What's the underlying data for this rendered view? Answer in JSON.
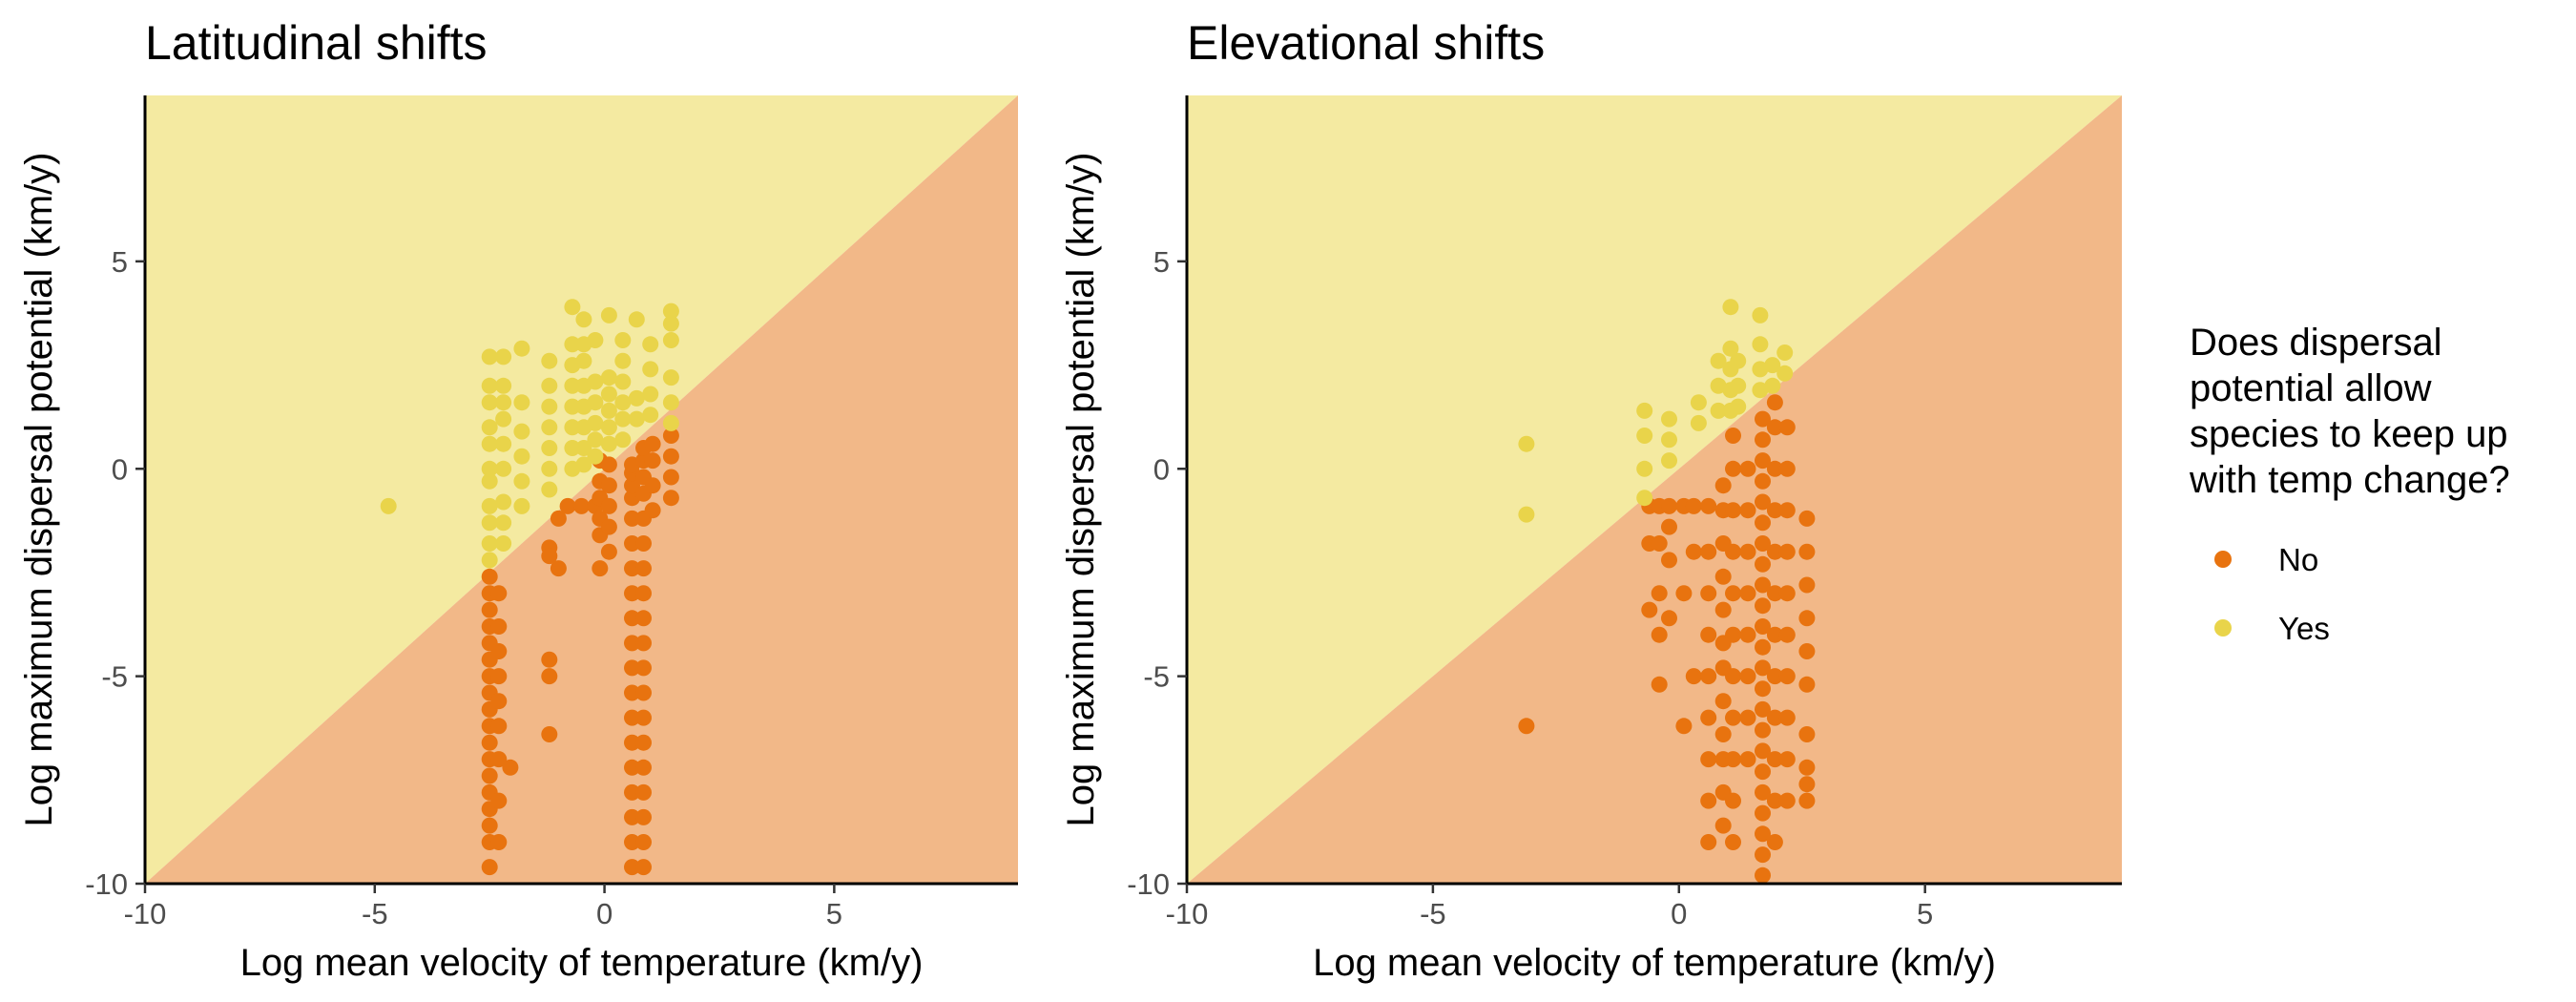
{
  "colors": {
    "no": "#E8730F",
    "yes": "#E9D44A",
    "bg_yes": "#F4EAA1",
    "bg_no": "#F2B888"
  },
  "legend": {
    "title_lines": [
      "Does dispersal",
      "potential allow",
      "species to keep up",
      "with temp change?"
    ],
    "items": [
      {
        "label": "No",
        "key": "no"
      },
      {
        "label": "Yes",
        "key": "yes"
      }
    ]
  },
  "chart_data": [
    {
      "type": "scatter",
      "title": "Latitudinal shifts",
      "xlabel": "Log mean velocity of temperature (km/y)",
      "ylabel": "Log maximum dispersal potential (km/y)",
      "xlim": [
        -10,
        9
      ],
      "ylim": [
        -10,
        9
      ],
      "xticks": [
        -10,
        -5,
        0,
        5
      ],
      "yticks": [
        -10,
        -5,
        0,
        5
      ],
      "tick_labels": [
        "-10",
        "-5",
        "0",
        "5"
      ],
      "background": "diagonal y = x split: above Yes, below No",
      "series": [
        {
          "name": "No",
          "key": "no",
          "columns": [
            {
              "x": -2.5,
              "y": [
                -9.6,
                -9.0,
                -8.6,
                -8.2,
                -7.8,
                -7.4,
                -7.0,
                -6.6,
                -6.2,
                -5.8,
                -5.4,
                -5.0,
                -4.6,
                -4.2,
                -3.8,
                -3.4,
                -3.0,
                -2.6
              ]
            },
            {
              "x": -2.3,
              "y": [
                -9.0,
                -8.0,
                -7.0,
                -6.2,
                -5.6,
                -5.0,
                -4.4,
                -3.8,
                -3.0
              ]
            },
            {
              "x": -2.05,
              "y": [
                -7.2
              ]
            },
            {
              "x": -1.2,
              "y": [
                -6.4,
                -5.0,
                -4.6,
                -1.9,
                -2.1
              ]
            },
            {
              "x": -1.0,
              "y": [
                -2.4,
                -1.2
              ]
            },
            {
              "x": -0.8,
              "y": [
                -0.9
              ]
            },
            {
              "x": -0.5,
              "y": [
                -0.9
              ]
            },
            {
              "x": -0.2,
              "y": [
                -0.9
              ]
            },
            {
              "x": -0.1,
              "y": [
                -2.4,
                -1.6,
                -1.2,
                -0.7,
                -0.3,
                0.2
              ]
            },
            {
              "x": 0.1,
              "y": [
                -2.0,
                -1.4,
                -0.9,
                -0.4,
                0.1
              ]
            },
            {
              "x": 0.6,
              "y": [
                -9.6,
                -9.0,
                -8.4,
                -7.8,
                -7.2,
                -6.6,
                -6.0,
                -5.4,
                -4.8,
                -4.2,
                -3.6,
                -3.0,
                -2.4,
                -1.8,
                -1.2,
                -0.7,
                -0.4,
                -0.1,
                0.1
              ]
            },
            {
              "x": 0.85,
              "y": [
                -9.6,
                -9.0,
                -8.4,
                -7.8,
                -7.2,
                -6.6,
                -6.0,
                -5.4,
                -4.8,
                -4.2,
                -3.6,
                -3.0,
                -2.4,
                -1.8,
                -1.2,
                -0.6,
                -0.2,
                0.2,
                0.5
              ]
            },
            {
              "x": 1.05,
              "y": [
                -1.0,
                -0.4,
                0.2,
                0.6
              ]
            },
            {
              "x": 1.45,
              "y": [
                -0.7,
                -0.2,
                0.3,
                0.8
              ]
            }
          ]
        },
        {
          "name": "Yes",
          "key": "yes",
          "columns": [
            {
              "x": -4.7,
              "y": [
                -0.9
              ]
            },
            {
              "x": -2.5,
              "y": [
                -2.2,
                -1.8,
                -1.3,
                -0.9,
                -0.3,
                0.0,
                0.6,
                1.0,
                1.6,
                2.0,
                2.7
              ]
            },
            {
              "x": -2.2,
              "y": [
                -1.8,
                -1.3,
                -0.8,
                0.0,
                0.6,
                1.2,
                1.6,
                2.0,
                2.7
              ]
            },
            {
              "x": -1.8,
              "y": [
                -0.9,
                -0.3,
                0.3,
                0.9,
                1.6,
                2.9
              ]
            },
            {
              "x": -1.2,
              "y": [
                -0.5,
                0.0,
                0.5,
                1.0,
                1.5,
                2.0,
                2.6
              ]
            },
            {
              "x": -0.7,
              "y": [
                0.0,
                0.5,
                1.0,
                1.5,
                2.0,
                2.5,
                3.0,
                3.9
              ]
            },
            {
              "x": -0.45,
              "y": [
                0.1,
                0.5,
                1.0,
                1.5,
                2.0,
                2.6,
                3.0,
                3.6
              ]
            },
            {
              "x": -0.2,
              "y": [
                0.3,
                0.7,
                1.1,
                1.6,
                2.1,
                3.1
              ]
            },
            {
              "x": 0.1,
              "y": [
                0.6,
                1.0,
                1.4,
                1.8,
                2.2,
                3.7
              ]
            },
            {
              "x": 0.4,
              "y": [
                0.7,
                1.2,
                1.6,
                2.1,
                2.6,
                3.1
              ]
            },
            {
              "x": 0.7,
              "y": [
                1.2,
                1.7,
                3.6
              ]
            },
            {
              "x": 1.0,
              "y": [
                1.3,
                1.8,
                2.4,
                3.0
              ]
            },
            {
              "x": 1.45,
              "y": [
                1.1,
                1.6,
                2.2,
                3.1,
                3.5,
                3.8
              ]
            }
          ]
        }
      ]
    },
    {
      "type": "scatter",
      "title": "Elevational shifts",
      "xlabel": "Log mean velocity of temperature (km/y)",
      "ylabel": "Log maximum dispersal potential (km/y)",
      "xlim": [
        -10,
        9
      ],
      "ylim": [
        -10,
        9
      ],
      "xticks": [
        -10,
        -5,
        0,
        5
      ],
      "yticks": [
        -10,
        -5,
        0,
        5
      ],
      "tick_labels": [
        "-10",
        "-5",
        "0",
        "5"
      ],
      "background": "diagonal y = x split: above Yes, below No",
      "series": [
        {
          "name": "No",
          "key": "no",
          "columns": [
            {
              "x": -3.1,
              "y": [
                -6.2
              ]
            },
            {
              "x": -0.6,
              "y": [
                -3.4,
                -1.8,
                -0.9
              ]
            },
            {
              "x": -0.4,
              "y": [
                -5.2,
                -4.0,
                -3.0,
                -1.8,
                -0.9
              ]
            },
            {
              "x": -0.2,
              "y": [
                -3.6,
                -2.2,
                -1.4,
                -0.9
              ]
            },
            {
              "x": 0.1,
              "y": [
                -6.2,
                -3.0,
                -0.9
              ]
            },
            {
              "x": 0.3,
              "y": [
                -5.0,
                -2.0,
                -0.9
              ]
            },
            {
              "x": 0.6,
              "y": [
                -9.0,
                -8.0,
                -7.0,
                -6.0,
                -5.0,
                -4.0,
                -3.0,
                -2.0,
                -0.9
              ]
            },
            {
              "x": 0.9,
              "y": [
                -8.6,
                -7.8,
                -7.0,
                -6.4,
                -5.6,
                -4.8,
                -4.2,
                -3.4,
                -2.6,
                -1.8,
                -1.0,
                -0.4
              ]
            },
            {
              "x": 1.1,
              "y": [
                -9.0,
                -8.0,
                -7.0,
                -6.0,
                -5.0,
                -4.0,
                -3.0,
                -2.0,
                -1.0,
                0.0,
                0.8
              ]
            },
            {
              "x": 1.4,
              "y": [
                -7.0,
                -6.0,
                -5.0,
                -4.0,
                -3.0,
                -2.0,
                -1.0,
                0.0
              ]
            },
            {
              "x": 1.7,
              "y": [
                -9.8,
                -9.3,
                -8.8,
                -8.3,
                -7.8,
                -7.3,
                -6.8,
                -6.3,
                -5.8,
                -5.3,
                -4.8,
                -4.3,
                -3.8,
                -3.3,
                -2.8,
                -2.3,
                -1.8,
                -1.3,
                -0.8,
                -0.3,
                0.2,
                0.7,
                1.2
              ]
            },
            {
              "x": 1.95,
              "y": [
                -9.0,
                -8.0,
                -7.0,
                -6.0,
                -5.0,
                -4.0,
                -3.0,
                -2.0,
                -1.0,
                0.0,
                1.0,
                1.6
              ]
            },
            {
              "x": 2.2,
              "y": [
                -8.0,
                -7.0,
                -6.0,
                -5.0,
                -4.0,
                -3.0,
                -2.0,
                -1.0,
                0.0,
                1.0
              ]
            },
            {
              "x": 2.6,
              "y": [
                -8.0,
                -7.6,
                -7.2,
                -6.4,
                -5.2,
                -4.4,
                -3.6,
                -2.8,
                -2.0,
                -1.2
              ]
            }
          ]
        },
        {
          "name": "Yes",
          "key": "yes",
          "columns": [
            {
              "x": -3.1,
              "y": [
                -1.1,
                0.6
              ]
            },
            {
              "x": -0.7,
              "y": [
                -0.7,
                0.0,
                0.8,
                1.4
              ]
            },
            {
              "x": -0.2,
              "y": [
                0.2,
                0.7,
                1.2
              ]
            },
            {
              "x": 0.4,
              "y": [
                1.1,
                1.6
              ]
            },
            {
              "x": 0.8,
              "y": [
                1.4,
                2.0,
                2.6
              ]
            },
            {
              "x": 1.05,
              "y": [
                1.4,
                1.9,
                2.4,
                2.9,
                3.9
              ]
            },
            {
              "x": 1.2,
              "y": [
                1.5,
                2.0,
                2.6
              ]
            },
            {
              "x": 1.65,
              "y": [
                1.9,
                2.4,
                3.0,
                3.7
              ]
            },
            {
              "x": 1.9,
              "y": [
                2.0,
                2.5
              ]
            },
            {
              "x": 2.15,
              "y": [
                2.3,
                2.8
              ]
            }
          ]
        }
      ]
    }
  ]
}
